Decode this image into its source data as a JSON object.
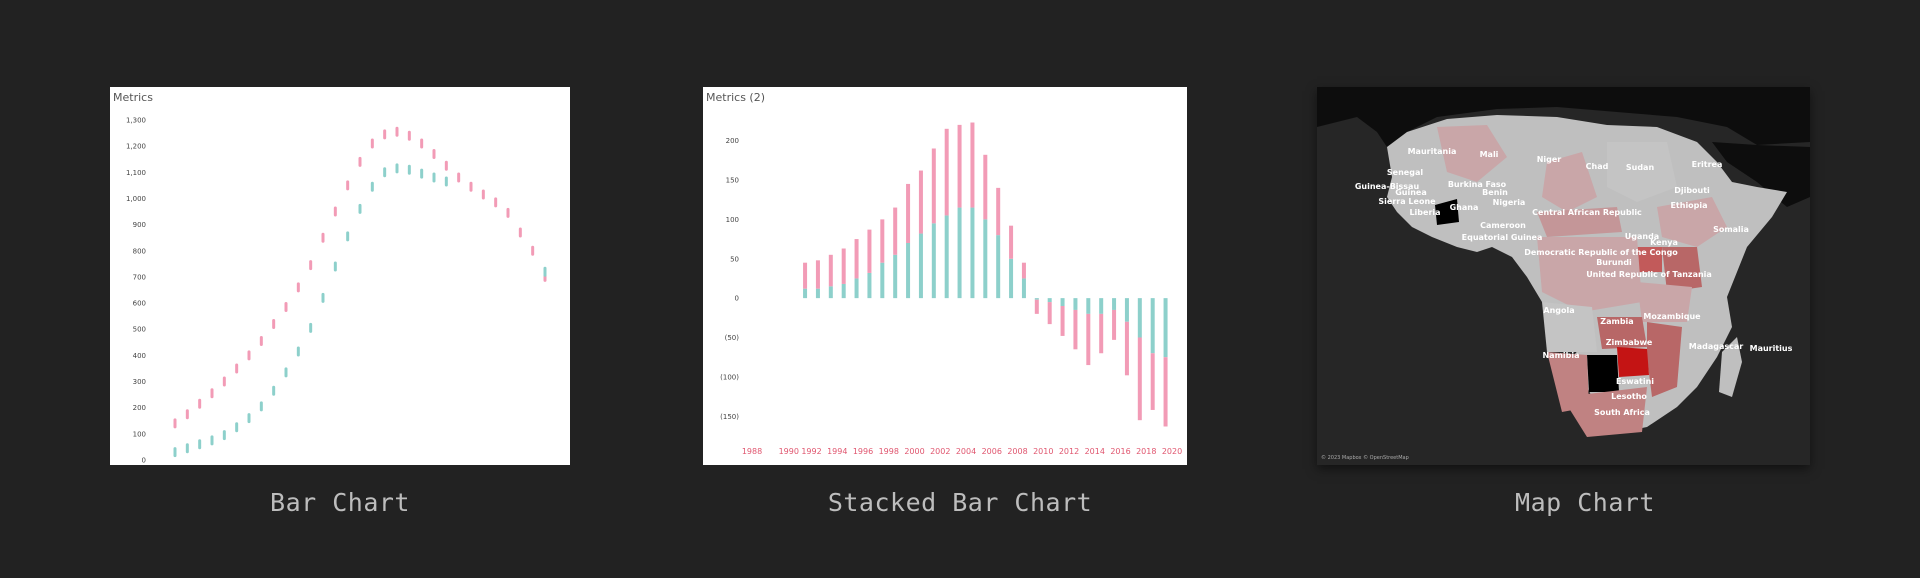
{
  "colors": {
    "pink": "#f29bb6",
    "teal": "#8dd0cb",
    "bg": "#222222",
    "accent_red": "#e0566f"
  },
  "cards": [
    {
      "caption": "Bar Chart"
    },
    {
      "caption": "Stacked Bar Chart"
    },
    {
      "caption": "Map Chart"
    }
  ],
  "chart_data": [
    {
      "type": "scatter",
      "title": "Metrics",
      "ylim": [
        0,
        1300
      ],
      "yticks": [
        0,
        100,
        200,
        300,
        400,
        500,
        600,
        700,
        800,
        900,
        1000,
        1100,
        1200,
        1300
      ],
      "ytick_labels": [
        "0",
        "100",
        "200",
        "300",
        "400",
        "500",
        "600",
        "700",
        "800",
        "900",
        "1,000",
        "1,100",
        "1,200",
        "1,300"
      ],
      "series": [
        {
          "color": "#f29bb6",
          "values": [
            140,
            175,
            215,
            255,
            300,
            350,
            400,
            455,
            520,
            585,
            660,
            745,
            850,
            950,
            1050,
            1140,
            1210,
            1245,
            1255,
            1240,
            1210,
            1170,
            1125,
            1080,
            1045,
            1015,
            985,
            945,
            870,
            800,
            700
          ]
        },
        {
          "color": "#8dd0cb",
          "values": [
            30,
            45,
            60,
            75,
            95,
            125,
            160,
            205,
            265,
            335,
            415,
            505,
            620,
            740,
            855,
            960,
            1045,
            1100,
            1115,
            1110,
            1095,
            1080,
            1065,
            null,
            null,
            null,
            null,
            null,
            null,
            null,
            720
          ]
        }
      ]
    },
    {
      "type": "bar",
      "title": "Metrics (2)",
      "ylim": [
        -170,
        230
      ],
      "yticks": [
        -150,
        -100,
        -50,
        0,
        50,
        100,
        150,
        200
      ],
      "ytick_labels": [
        "(150)",
        "(100)",
        "(50)",
        "0",
        "50",
        "100",
        "150",
        "200"
      ],
      "x_labels": [
        "1988",
        "1990",
        "1992",
        "1994",
        "1996",
        "1998",
        "2000",
        "2002",
        "2004",
        "2006",
        "2008",
        "2010",
        "2012",
        "2014",
        "2016",
        "2018",
        "2020"
      ],
      "x": [
        1991,
        1992,
        1993,
        1994,
        1995,
        1996,
        1997,
        1998,
        1999,
        2000,
        2001,
        2002,
        2003,
        2004,
        2005,
        2006,
        2007,
        2008,
        2009,
        2010,
        2011,
        2012,
        2013,
        2014,
        2015,
        2016,
        2017,
        2018,
        2019
      ],
      "series": [
        {
          "name": "",
          "color": "#8dd0cb",
          "values": [
            12,
            12,
            15,
            18,
            25,
            32,
            45,
            55,
            70,
            82,
            95,
            105,
            115,
            115,
            100,
            80,
            50,
            25,
            -2,
            -5,
            -10,
            -15,
            -20,
            -20,
            -15,
            -30,
            -50,
            -70,
            -75
          ]
        },
        {
          "name": "",
          "color": "#f29bb6",
          "values": [
            33,
            36,
            40,
            45,
            50,
            55,
            55,
            60,
            75,
            80,
            95,
            110,
            105,
            108,
            82,
            60,
            42,
            20,
            -18,
            -28,
            -38,
            -50,
            -65,
            -50,
            -38,
            -68,
            -105,
            -72,
            -88
          ]
        }
      ]
    },
    {
      "type": "map",
      "labels": [
        "Mauritania",
        "Mali",
        "Niger",
        "Chad",
        "Sudan",
        "Eritrea",
        "Senegal",
        "Guinea-Bissau",
        "Guinea",
        "Sierra Leone",
        "Liberia",
        "Burkina Faso",
        "Benin",
        "Nigeria",
        "Ghana",
        "Djibouti",
        "Ethiopia",
        "Central African Republic",
        "Cameroon",
        "Equatorial Guinea",
        "Uganda",
        "Kenya",
        "Somalia",
        "Democratic Republic of the Congo",
        "Burundi",
        "United Republic of Tanzania",
        "Angola",
        "Zambia",
        "Mozambique",
        "Zimbabwe",
        "Madagascar",
        "Mauritius",
        "Namibia",
        "Eswatini",
        "Lesotho",
        "South Africa"
      ],
      "attribution": "© 2023 Mapbox © OpenStreetMap"
    }
  ]
}
